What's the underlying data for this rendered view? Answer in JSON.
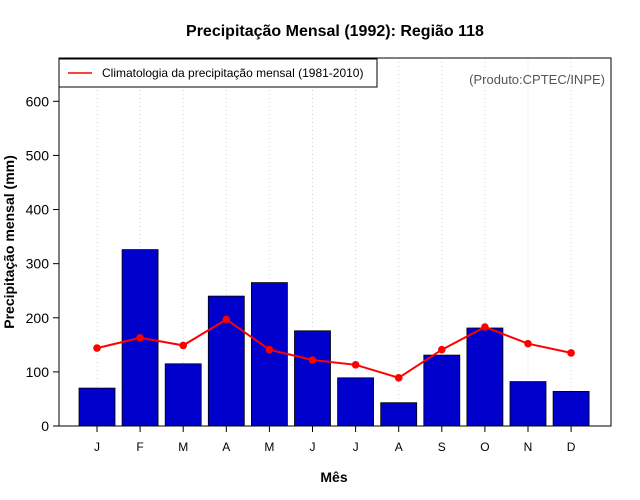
{
  "chart_data": {
    "type": "bar",
    "title": "Precipitação Mensal (1992): Região 118",
    "xlabel": "Mês",
    "ylabel": "Precipitação mensal (mm)",
    "ylim": [
      0,
      680
    ],
    "yticks": [
      0,
      100,
      200,
      300,
      400,
      500,
      600
    ],
    "categories": [
      "J",
      "F",
      "M",
      "A",
      "M",
      "J",
      "J",
      "A",
      "S",
      "O",
      "N",
      "D"
    ],
    "series": [
      {
        "name": "Precipitação mensal (1992)",
        "type": "bar",
        "color": "#0000cd",
        "values": [
          70,
          326,
          115,
          240,
          265,
          176,
          89,
          43,
          131,
          181,
          82,
          64
        ]
      },
      {
        "name": "Climatologia da precipitação mensal (1981-2010)",
        "type": "line",
        "color": "#ff0000",
        "values": [
          144,
          163,
          149,
          197,
          141,
          122,
          113,
          89,
          141,
          183,
          152,
          135
        ]
      }
    ],
    "legend": {
      "entries": [
        "Climatologia da precipitação mensal (1981-2010)"
      ],
      "placement": "top-left"
    },
    "annotation": "(Produto:CPTEC/INPE)",
    "grid": "vertical-dotted"
  },
  "colors": {
    "bar_fill": "#0000cd",
    "line": "#ff0000",
    "grid": "#d3d3d3"
  }
}
